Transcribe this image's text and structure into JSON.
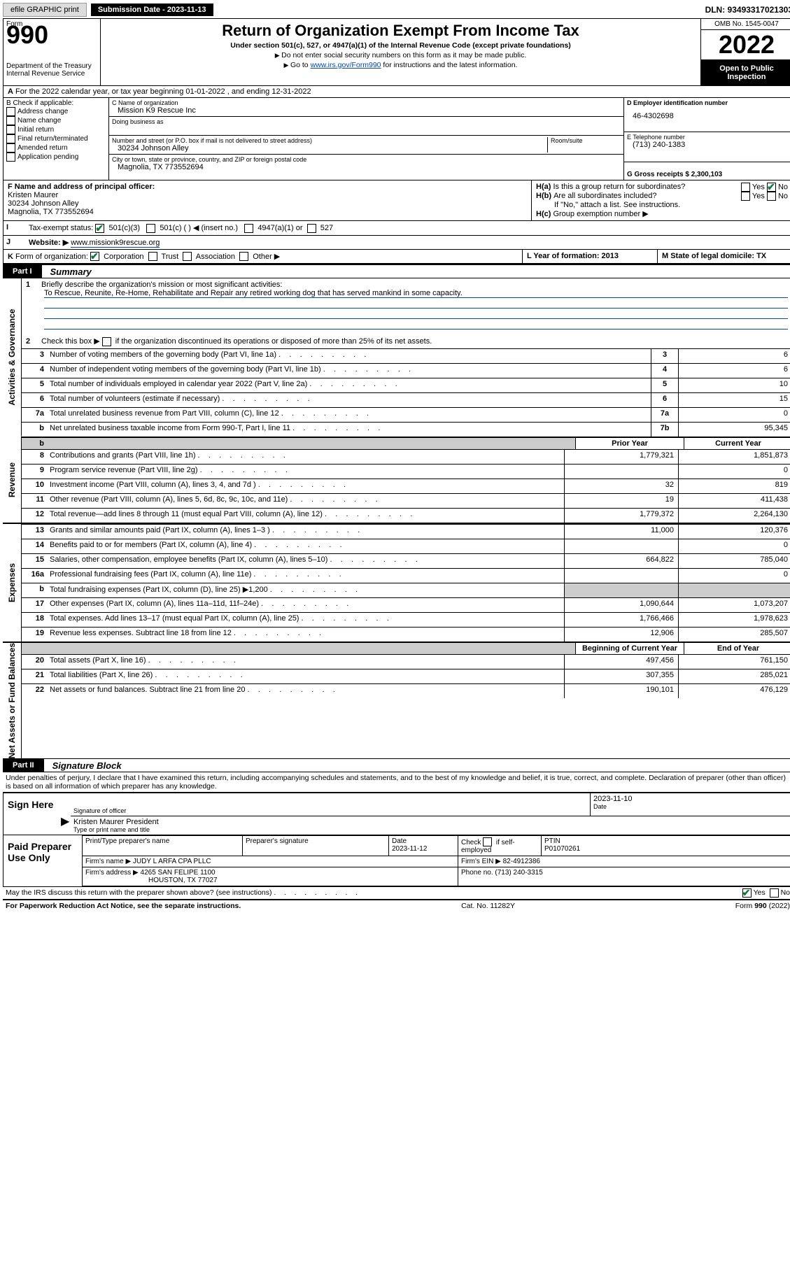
{
  "top": {
    "efile": "efile GRAPHIC print",
    "submission": "Submission Date - 2023-11-13",
    "dln": "DLN: 93493317021303"
  },
  "header": {
    "form_word": "Form",
    "form_num": "990",
    "title": "Return of Organization Exempt From Income Tax",
    "sub1": "Under section 501(c), 527, or 4947(a)(1) of the Internal Revenue Code (except private foundations)",
    "bullet1": "Do not enter social security numbers on this form as it may be made public.",
    "bullet2_pre": "Go to ",
    "bullet2_link": "www.irs.gov/Form990",
    "bullet2_post": " for instructions and the latest information.",
    "dept": "Department of the Treasury\nInternal Revenue Service",
    "omb": "OMB No. 1545-0047",
    "year": "2022",
    "open": "Open to Public Inspection"
  },
  "A": "For the 2022 calendar year, or tax year beginning 01-01-2022    , and ending 12-31-2022",
  "B": {
    "label": "B Check if applicable:",
    "items": [
      "Address change",
      "Name change",
      "Initial return",
      "Final return/terminated",
      "Amended return",
      "Application pending"
    ]
  },
  "C": {
    "name_label": "C Name of organization",
    "name": "Mission K9 Rescue Inc",
    "dba_label": "Doing business as",
    "dba": "",
    "street_label": "Number and street (or P.O. box if mail is not delivered to street address)",
    "room_label": "Room/suite",
    "street": "30234 Johnson Alley",
    "city_label": "City or town, state or province, country, and ZIP or foreign postal code",
    "city": "Magnolia, TX  773552694"
  },
  "D": {
    "label": "D Employer identification number",
    "val": "46-4302698"
  },
  "E": {
    "label": "E Telephone number",
    "val": "(713) 240-1383"
  },
  "G": "G Gross receipts $ 2,300,103",
  "F": {
    "label": "F Name and address of principal officer:",
    "name": "Kristen Maurer",
    "addr1": "30234 Johnson Alley",
    "addr2": "Magnolia, TX  773552694"
  },
  "H": {
    "a": "Is this a group return for subordinates?",
    "b": "Are all subordinates included?",
    "b2": "If \"No,\" attach a list. See instructions.",
    "c": "Group exemption number ▶"
  },
  "I": {
    "label": "Tax-exempt status:",
    "o1": "501(c)(3)",
    "o2": "501(c) (   ) ◀ (insert no.)",
    "o3": "4947(a)(1) or",
    "o4": "527"
  },
  "J": {
    "label": "Website: ▶",
    "val": "www.missionk9rescue.org"
  },
  "K": "Form of organization:",
  "K_opts": [
    "Corporation",
    "Trust",
    "Association",
    "Other ▶"
  ],
  "L": "L Year of formation: 2013",
  "M": "M State of legal domicile: TX",
  "part1": {
    "label": "Part I",
    "title": "Summary"
  },
  "summary": {
    "l1": "Briefly describe the organization's mission or most significant activities:",
    "mission": "To Rescue, Reunite, Re-Home, Rehabilitate and Repair any retired working dog that has served mankind in some capacity.",
    "l2": "Check this box ▶       if the organization discontinued its operations or disposed of more than 25% of its net assets.",
    "lines_ag": [
      {
        "n": "3",
        "d": "Number of voting members of the governing body (Part VI, line 1a)",
        "ref": "3",
        "v": "6"
      },
      {
        "n": "4",
        "d": "Number of independent voting members of the governing body (Part VI, line 1b)",
        "ref": "4",
        "v": "6"
      },
      {
        "n": "5",
        "d": "Total number of individuals employed in calendar year 2022 (Part V, line 2a)",
        "ref": "5",
        "v": "10"
      },
      {
        "n": "6",
        "d": "Total number of volunteers (estimate if necessary)",
        "ref": "6",
        "v": "15"
      },
      {
        "n": "7a",
        "d": "Total unrelated business revenue from Part VIII, column (C), line 12",
        "ref": "7a",
        "v": "0"
      },
      {
        "n": "b",
        "d": "Net unrelated business taxable income from Form 990-T, Part I, line 11",
        "ref": "7b",
        "v": "95,345"
      }
    ],
    "col_prior": "Prior Year",
    "col_curr": "Current Year",
    "revenue": [
      {
        "n": "8",
        "d": "Contributions and grants (Part VIII, line 1h)",
        "p": "1,779,321",
        "c": "1,851,873"
      },
      {
        "n": "9",
        "d": "Program service revenue (Part VIII, line 2g)",
        "p": "",
        "c": "0"
      },
      {
        "n": "10",
        "d": "Investment income (Part VIII, column (A), lines 3, 4, and 7d )",
        "p": "32",
        "c": "819"
      },
      {
        "n": "11",
        "d": "Other revenue (Part VIII, column (A), lines 5, 6d, 8c, 9c, 10c, and 11e)",
        "p": "19",
        "c": "411,438"
      },
      {
        "n": "12",
        "d": "Total revenue—add lines 8 through 11 (must equal Part VIII, column (A), line 12)",
        "p": "1,779,372",
        "c": "2,264,130"
      }
    ],
    "expenses": [
      {
        "n": "13",
        "d": "Grants and similar amounts paid (Part IX, column (A), lines 1–3 )",
        "p": "11,000",
        "c": "120,376"
      },
      {
        "n": "14",
        "d": "Benefits paid to or for members (Part IX, column (A), line 4)",
        "p": "",
        "c": "0"
      },
      {
        "n": "15",
        "d": "Salaries, other compensation, employee benefits (Part IX, column (A), lines 5–10)",
        "p": "664,822",
        "c": "785,040"
      },
      {
        "n": "16a",
        "d": "Professional fundraising fees (Part IX, column (A), line 11e)",
        "p": "",
        "c": "0"
      },
      {
        "n": "b",
        "d": "Total fundraising expenses (Part IX, column (D), line 25) ▶1,200",
        "p": "grey",
        "c": "grey"
      },
      {
        "n": "17",
        "d": "Other expenses (Part IX, column (A), lines 11a–11d, 11f–24e)",
        "p": "1,090,644",
        "c": "1,073,207"
      },
      {
        "n": "18",
        "d": "Total expenses. Add lines 13–17 (must equal Part IX, column (A), line 25)",
        "p": "1,766,466",
        "c": "1,978,623"
      },
      {
        "n": "19",
        "d": "Revenue less expenses. Subtract line 18 from line 12",
        "p": "12,906",
        "c": "285,507"
      }
    ],
    "col_begin": "Beginning of Current Year",
    "col_end": "End of Year",
    "netassets": [
      {
        "n": "20",
        "d": "Total assets (Part X, line 16)",
        "p": "497,456",
        "c": "761,150"
      },
      {
        "n": "21",
        "d": "Total liabilities (Part X, line 26)",
        "p": "307,355",
        "c": "285,021"
      },
      {
        "n": "22",
        "d": "Net assets or fund balances. Subtract line 21 from line 20",
        "p": "190,101",
        "c": "476,129"
      }
    ]
  },
  "part2": {
    "label": "Part II",
    "title": "Signature Block"
  },
  "sig": {
    "penalty": "Under penalties of perjury, I declare that I have examined this return, including accompanying schedules and statements, and to the best of my knowledge and belief, it is true, correct, and complete. Declaration of preparer (other than officer) is based on all information of which preparer has any knowledge.",
    "sign_here": "Sign Here",
    "sig_officer": "Signature of officer",
    "sig_date": "2023-11-10",
    "date_label": "Date",
    "officer_name": "Kristen Maurer President",
    "type_name": "Type or print name and title",
    "paid": "Paid Preparer Use Only",
    "pt_name": "Print/Type preparer's name",
    "pt_sig": "Preparer's signature",
    "pt_date": "Date",
    "pt_date_val": "2023-11-12",
    "pt_check": "Check        if self-employed",
    "ptin": "PTIN",
    "ptin_val": "P01070261",
    "firm_name_l": "Firm's name    ▶",
    "firm_name": "JUDY L ARFA CPA PLLC",
    "firm_ein_l": "Firm's EIN ▶",
    "firm_ein": "82-4912386",
    "firm_addr_l": "Firm's address ▶",
    "firm_addr1": "4265 SAN FELIPE 1100",
    "firm_addr2": "HOUSTON, TX  77027",
    "phone_l": "Phone no.",
    "phone": "(713) 240-3315",
    "discuss": "May the IRS discuss this return with the preparer shown above? (see instructions)"
  },
  "footer": {
    "left": "For Paperwork Reduction Act Notice, see the separate instructions.",
    "center": "Cat. No. 11282Y",
    "right": "Form 990 (2022)"
  }
}
